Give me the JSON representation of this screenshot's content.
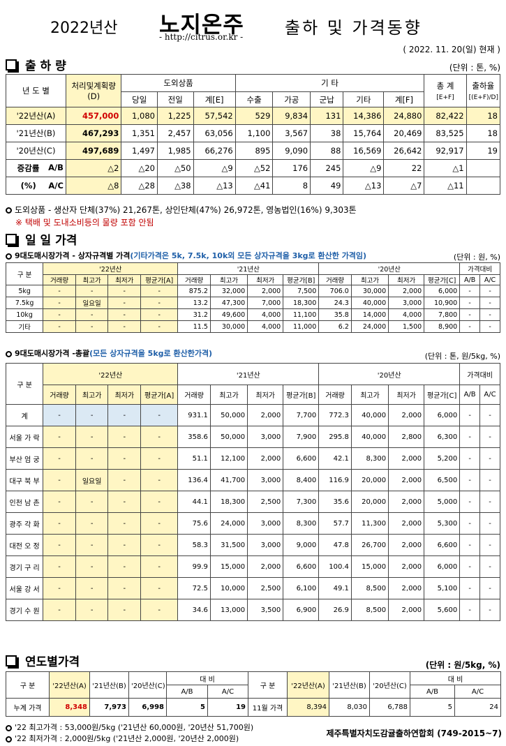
{
  "header": {
    "year": "2022년산",
    "brand": "노지온주",
    "url": "- http://citrus.or.kr -",
    "subtitle": "출하 및 가격동향",
    "date": "( 2022. 11. 20(일) 현재 )"
  },
  "sec1": {
    "title": "출 하 량",
    "unit": "(단위 : 톤, %)",
    "h_year": "년 도 별",
    "h_plan": "처리및계획량",
    "h_plan_d": "(D)",
    "h_out": "도외상품",
    "h_etc": "기 타",
    "h_total": "총 계",
    "h_total_sub": "[E+F]",
    "h_rate": "출하율",
    "h_rate_sub": "[(E+F)/D]",
    "sub_headers": [
      "당일",
      "전일",
      "계[E]",
      "수출",
      "가공",
      "군납",
      "기타",
      "계[F]"
    ],
    "rows": [
      {
        "label": "'22년산(A)",
        "plan": "457,000",
        "v": [
          "1,080",
          "1,225",
          "57,542",
          "529",
          "9,834",
          "131",
          "14,386",
          "24,880",
          "82,422",
          "18"
        ]
      },
      {
        "label": "'21년산(B)",
        "plan": "467,293",
        "v": [
          "1,351",
          "2,457",
          "63,056",
          "1,100",
          "3,567",
          "38",
          "15,764",
          "20,469",
          "83,525",
          "18"
        ]
      },
      {
        "label": "'20년산(C)",
        "plan": "497,689",
        "v": [
          "1,497",
          "1,985",
          "66,276",
          "895",
          "9,090",
          "88",
          "16,569",
          "26,642",
          "92,917",
          "19"
        ]
      }
    ],
    "diff_label1": "증감률",
    "diff_label2": "(%)",
    "diff_rows": [
      {
        "label": "A/B",
        "v": [
          "△2",
          "△20",
          "△50",
          "△9",
          "△52",
          "176",
          "245",
          "△9",
          "22",
          "△1",
          ""
        ]
      },
      {
        "label": "A/C",
        "v": [
          "△8",
          "△28",
          "△38",
          "△13",
          "△41",
          "8",
          "49",
          "△13",
          "△7",
          "△11",
          ""
        ]
      }
    ],
    "note1": "도외상품 - 생산자 단체(37%) 21,267톤,  상인단체(47%) 26,972톤,  영농법인(16%) 9,303톤",
    "note2": "※ 택배 및 도내소비등의 물량 포함 안됨"
  },
  "sec2": {
    "title": "일 일 가격",
    "t1_title": "9대도매시장가격 - 상자규격별 가격",
    "t1_title_blue": "(기타가격은 5k, 7.5k, 10k외 모든 상자규격을 3kg로 환산한 가격임)",
    "t1_unit": "(단위 : 원, %)",
    "h_gubun": "구 분",
    "h_22": "'22년산",
    "h_21": "'21년산",
    "h_20": "'20년산",
    "h_cmp": "가격대비",
    "sub22": [
      "거래량",
      "최고가",
      "최저가",
      "평균가[A]"
    ],
    "sub21": [
      "거래량",
      "최고가",
      "최저가",
      "평균가[B]"
    ],
    "sub20": [
      "거래량",
      "최고가",
      "최저가",
      "평균가[C]"
    ],
    "subcmp": [
      "A/B",
      "A/C"
    ],
    "t1_rows": [
      {
        "label": "5kg",
        "v": [
          "-",
          "-",
          "-",
          "-",
          "875.2",
          "32,000",
          "2,000",
          "7,500",
          "706.0",
          "30,000",
          "2,000",
          "6,000",
          "-",
          "-"
        ]
      },
      {
        "label": "7.5kg",
        "v": [
          "-",
          "일요일",
          "-",
          "-",
          "13.2",
          "47,300",
          "7,000",
          "18,300",
          "24.3",
          "40,000",
          "3,000",
          "10,900",
          "-",
          "-"
        ]
      },
      {
        "label": "10kg",
        "v": [
          "-",
          "-",
          "-",
          "-",
          "31.2",
          "49,600",
          "4,000",
          "11,100",
          "35.8",
          "14,000",
          "4,000",
          "7,800",
          "-",
          "-"
        ]
      },
      {
        "label": "기타",
        "v": [
          "-",
          "-",
          "-",
          "-",
          "11.5",
          "30,000",
          "4,000",
          "11,000",
          "6.2",
          "24,000",
          "1,500",
          "8,900",
          "-",
          "-"
        ]
      }
    ],
    "t2_title": "9대도매시장가격 -총괄",
    "t2_title_blue": "(모든 상자규격을 5kg로 환산한가격)",
    "t2_unit": "(단위 : 톤, 원/5kg, %)",
    "t2_rows": [
      {
        "label": "계",
        "v": [
          "-",
          "-",
          "-",
          "-",
          "931.1",
          "50,000",
          "2,000",
          "7,700",
          "772.3",
          "40,000",
          "2,000",
          "6,000",
          "-",
          "-"
        ]
      },
      {
        "label": "서울 가 락",
        "v": [
          "-",
          "-",
          "-",
          "-",
          "358.6",
          "50,000",
          "3,000",
          "7,900",
          "295.8",
          "40,000",
          "2,800",
          "6,300",
          "-",
          "-"
        ]
      },
      {
        "label": "부산 엄 궁",
        "v": [
          "-",
          "-",
          "-",
          "-",
          "51.1",
          "12,100",
          "2,000",
          "6,600",
          "42.1",
          "8,300",
          "2,000",
          "5,200",
          "-",
          "-"
        ]
      },
      {
        "label": "대구 북 부",
        "v": [
          "-",
          "일요일",
          "-",
          "-",
          "136.4",
          "41,700",
          "3,000",
          "8,400",
          "116.9",
          "20,000",
          "2,000",
          "6,500",
          "-",
          "-"
        ]
      },
      {
        "label": "인천 남 촌",
        "v": [
          "-",
          "-",
          "-",
          "-",
          "44.1",
          "18,300",
          "2,500",
          "7,300",
          "35.6",
          "20,000",
          "2,000",
          "5,000",
          "-",
          "-"
        ]
      },
      {
        "label": "광주 각 화",
        "v": [
          "-",
          "-",
          "-",
          "-",
          "75.6",
          "24,000",
          "3,000",
          "8,300",
          "57.7",
          "11,300",
          "2,000",
          "5,300",
          "-",
          "-"
        ]
      },
      {
        "label": "대전 오 정",
        "v": [
          "-",
          "-",
          "-",
          "-",
          "58.3",
          "31,500",
          "3,000",
          "9,000",
          "47.8",
          "26,700",
          "2,000",
          "6,600",
          "-",
          "-"
        ]
      },
      {
        "label": "경기 구 리",
        "v": [
          "-",
          "-",
          "-",
          "-",
          "99.9",
          "15,000",
          "2,000",
          "6,600",
          "100.4",
          "15,000",
          "2,000",
          "6,000",
          "-",
          "-"
        ]
      },
      {
        "label": "서울 강 서",
        "v": [
          "-",
          "-",
          "-",
          "-",
          "72.5",
          "10,000",
          "2,500",
          "6,100",
          "49.1",
          "8,500",
          "2,000",
          "5,100",
          "-",
          "-"
        ]
      },
      {
        "label": "경기 수 원",
        "v": [
          "-",
          "-",
          "-",
          "-",
          "34.6",
          "13,000",
          "3,500",
          "6,900",
          "26.9",
          "8,500",
          "2,000",
          "5,600",
          "-",
          "-"
        ]
      }
    ]
  },
  "sec3": {
    "title": "연도별가격",
    "unit": "(단위 : 원/5kg, %)",
    "h_gubun": "구 분",
    "h_22": "'22년산(A)",
    "h_21": "'21년산(B)",
    "h_20": "'20년산(C)",
    "h_cmp": "대 비",
    "h_ab": "A/B",
    "h_ac": "A/C",
    "row_left": {
      "label": "누계 가격",
      "v": [
        "8,348",
        "7,973",
        "6,998",
        "5",
        "19"
      ]
    },
    "row_right": {
      "label": "11월 가격",
      "v": [
        "8,394",
        "8,030",
        "6,788",
        "5",
        "24"
      ]
    },
    "note_max": "'22 최고가격 : 53,000원/5kg ('21년산 60,000원, '20년산 51,700원)",
    "note_min": "'22 최저가격 :  2,000원/5kg ('21년산 2,000원, '20년산 2,000원)",
    "org": "제주특별자치도감귤출하연합회 (749-2015~7)"
  }
}
